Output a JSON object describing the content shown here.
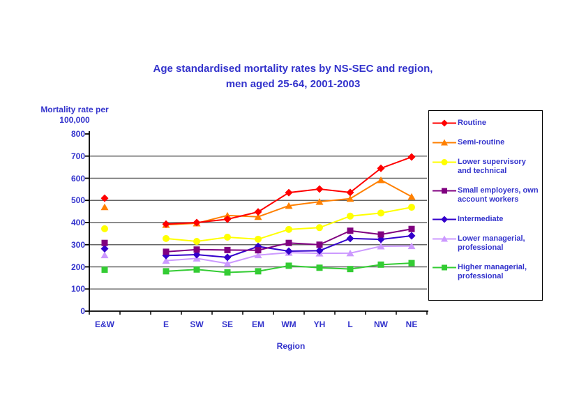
{
  "title": {
    "line1": "Age standardised mortality rates by NS-SEC and region,",
    "line2": "men aged 25-64, 2001-2003"
  },
  "y_axis": {
    "label_line1": "Mortality rate per",
    "label_line2": "100,000",
    "min": 0,
    "max": 800,
    "tick_step": 100,
    "ticks": [
      0,
      100,
      200,
      300,
      400,
      500,
      600,
      700,
      800
    ]
  },
  "x_axis": {
    "label": "Region"
  },
  "chart_data": {
    "type": "line",
    "title": "Age standardised mortality rates by NS-SEC and region, men aged 25-64, 2001-2003",
    "xlabel": "Region",
    "ylabel": "Mortality rate per 100,000",
    "ylim": [
      0,
      800
    ],
    "grid": true,
    "legend_position": "right",
    "first_category_markers_only": true,
    "categories": [
      "E&W",
      "E",
      "SW",
      "SE",
      "EM",
      "WM",
      "YH",
      "L",
      "NW",
      "NE"
    ],
    "series": [
      {
        "name": "Routine",
        "color": "#ff0000",
        "marker": "diamond",
        "values": [
          510,
          393,
          400,
          415,
          448,
          535,
          551,
          536,
          645,
          696
        ]
      },
      {
        "name": "Semi-routine",
        "color": "#ff8000",
        "marker": "triangle",
        "values": [
          470,
          390,
          397,
          432,
          426,
          476,
          494,
          508,
          592,
          517
        ]
      },
      {
        "name": "Lower supervisory and technical",
        "color": "#ffff00",
        "marker": "circle",
        "values": [
          372,
          328,
          315,
          334,
          325,
          369,
          377,
          429,
          443,
          469
        ]
      },
      {
        "name": "Small employers, own account workers",
        "color": "#800080",
        "marker": "square",
        "values": [
          308,
          268,
          278,
          276,
          275,
          308,
          300,
          363,
          346,
          371
        ]
      },
      {
        "name": "Intermediate",
        "color": "#3300cc",
        "marker": "diamond",
        "values": [
          282,
          251,
          255,
          243,
          292,
          271,
          273,
          328,
          324,
          340
        ]
      },
      {
        "name": "Lower managerial, professional",
        "color": "#cc99ff",
        "marker": "triangle",
        "values": [
          253,
          228,
          238,
          215,
          253,
          264,
          261,
          262,
          293,
          294
        ]
      },
      {
        "name": "Higher managerial, professional",
        "color": "#33cc33",
        "marker": "square",
        "values": [
          187,
          180,
          188,
          175,
          180,
          205,
          196,
          190,
          210,
          217
        ]
      }
    ]
  },
  "colors": {
    "text_blue": "#3333cc",
    "gridline": "#666666",
    "axis": "#000000"
  }
}
